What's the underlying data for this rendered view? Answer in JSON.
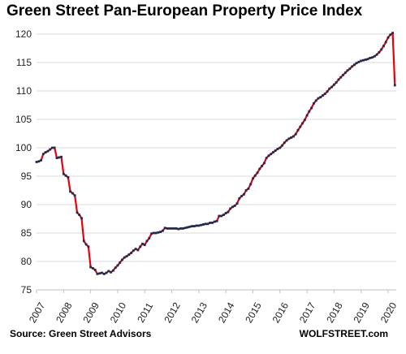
{
  "chart_data": {
    "type": "line",
    "title": "Green Street Pan-European Property Price Index",
    "xlabel": "",
    "ylabel": "",
    "x_range": [
      2007.0,
      2020.3
    ],
    "ylim": [
      75,
      120
    ],
    "yticks": [
      75,
      80,
      85,
      90,
      95,
      100,
      105,
      110,
      115,
      120
    ],
    "xticks": [
      "2007",
      "2008",
      "2009",
      "2010",
      "2011",
      "2012",
      "2013",
      "2014",
      "2015",
      "2016",
      "2017",
      "2018",
      "2019",
      "2020"
    ],
    "grid": "horizontal",
    "legend": "none",
    "colors": {
      "line": "#e8000d",
      "marker": "#1f2d4d",
      "grid": "#d9d9d9",
      "axis": "#bfbfbf"
    },
    "series": [
      {
        "x": [
          2007.0,
          2007.083,
          2007.167,
          2007.25,
          2007.333,
          2007.417,
          2007.5,
          2007.583,
          2007.667,
          2007.75,
          2007.833,
          2007.917,
          2008.0,
          2008.083,
          2008.167,
          2008.25,
          2008.333,
          2008.417,
          2008.5,
          2008.583,
          2008.667,
          2008.75,
          2008.833,
          2008.917,
          2009.0,
          2009.083,
          2009.167,
          2009.25,
          2009.333,
          2009.417,
          2009.5,
          2009.583,
          2009.667,
          2009.75,
          2009.833,
          2009.917,
          2010.0,
          2010.083,
          2010.167,
          2010.25,
          2010.333,
          2010.417,
          2010.5,
          2010.583,
          2010.667,
          2010.75,
          2010.833,
          2010.917,
          2011.0,
          2011.083,
          2011.167,
          2011.25,
          2011.333,
          2011.417,
          2011.5,
          2011.583,
          2011.667,
          2011.75,
          2011.833,
          2011.917,
          2012.0,
          2012.083,
          2012.167,
          2012.25,
          2012.333,
          2012.417,
          2012.5,
          2012.583,
          2012.667,
          2012.75,
          2012.833,
          2012.917,
          2013.0,
          2013.083,
          2013.167,
          2013.25,
          2013.333,
          2013.417,
          2013.5,
          2013.583,
          2013.667,
          2013.75,
          2013.833,
          2013.917,
          2014.0,
          2014.083,
          2014.167,
          2014.25,
          2014.333,
          2014.417,
          2014.5,
          2014.583,
          2014.667,
          2014.75,
          2014.833,
          2014.917,
          2015.0,
          2015.083,
          2015.167,
          2015.25,
          2015.333,
          2015.417,
          2015.5,
          2015.583,
          2015.667,
          2015.75,
          2015.833,
          2015.917,
          2016.0,
          2016.083,
          2016.167,
          2016.25,
          2016.333,
          2016.417,
          2016.5,
          2016.583,
          2016.667,
          2016.75,
          2016.833,
          2016.917,
          2017.0,
          2017.083,
          2017.167,
          2017.25,
          2017.333,
          2017.417,
          2017.5,
          2017.583,
          2017.667,
          2017.75,
          2017.833,
          2017.917,
          2018.0,
          2018.083,
          2018.167,
          2018.25,
          2018.333,
          2018.417,
          2018.5,
          2018.583,
          2018.667,
          2018.75,
          2018.833,
          2018.917,
          2019.0,
          2019.083,
          2019.167,
          2019.25,
          2019.333,
          2019.417,
          2019.5,
          2019.583,
          2019.667,
          2019.75,
          2019.833,
          2019.917,
          2020.0,
          2020.083,
          2020.167,
          2020.25
        ],
        "y": [
          97.5,
          97.6,
          97.8,
          98.9,
          99.2,
          99.4,
          99.7,
          100.0,
          100.0,
          98.2,
          98.3,
          98.4,
          95.4,
          95.1,
          94.8,
          92.3,
          92.0,
          91.6,
          88.6,
          88.2,
          87.6,
          83.6,
          83.0,
          82.6,
          79.0,
          78.8,
          78.5,
          77.8,
          77.9,
          78.0,
          77.8,
          78.0,
          78.3,
          78.1,
          78.4,
          78.9,
          79.3,
          79.8,
          80.3,
          80.7,
          80.9,
          81.2,
          81.5,
          81.9,
          82.2,
          82.0,
          82.6,
          83.1,
          82.9,
          83.6,
          84.1,
          84.9,
          85.0,
          85.0,
          85.1,
          85.2,
          85.4,
          85.9,
          85.8,
          85.8,
          85.8,
          85.8,
          85.8,
          85.7,
          85.8,
          85.8,
          85.9,
          86.0,
          86.1,
          86.2,
          86.2,
          86.3,
          86.3,
          86.4,
          86.5,
          86.6,
          86.6,
          86.8,
          86.8,
          87.0,
          87.1,
          88.0,
          88.0,
          88.2,
          88.5,
          88.7,
          89.3,
          89.6,
          89.8,
          90.2,
          91.1,
          91.5,
          91.8,
          92.5,
          92.8,
          93.6,
          94.6,
          95.1,
          95.6,
          96.3,
          96.8,
          97.3,
          98.2,
          98.6,
          98.9,
          99.2,
          99.5,
          99.8,
          100.0,
          100.4,
          100.9,
          101.3,
          101.6,
          101.8,
          102.0,
          102.4,
          103.1,
          103.7,
          104.3,
          104.9,
          105.7,
          106.4,
          107.0,
          107.8,
          108.3,
          108.7,
          108.9,
          109.2,
          109.5,
          109.9,
          110.4,
          110.7,
          111.1,
          111.5,
          112.0,
          112.4,
          112.8,
          113.2,
          113.6,
          113.9,
          114.3,
          114.6,
          114.9,
          115.1,
          115.3,
          115.4,
          115.5,
          115.6,
          115.8,
          115.9,
          116.1,
          116.4,
          116.8,
          117.3,
          117.9,
          118.6,
          119.4,
          119.9,
          120.2,
          111.0
        ]
      }
    ]
  },
  "footer": {
    "source": "Source: Green Street Advisors",
    "brand": "WOLFSTREET.com"
  }
}
